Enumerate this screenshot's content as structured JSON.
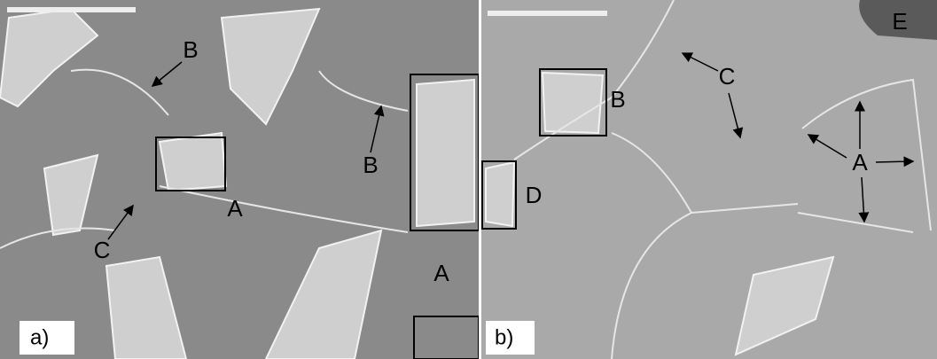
{
  "panels": [
    {
      "label": "a)",
      "annotations": [
        "B",
        "B",
        "A",
        "A",
        "C"
      ]
    },
    {
      "label": "b)",
      "annotations": [
        "C",
        "B",
        "A",
        "D",
        "E"
      ]
    }
  ]
}
